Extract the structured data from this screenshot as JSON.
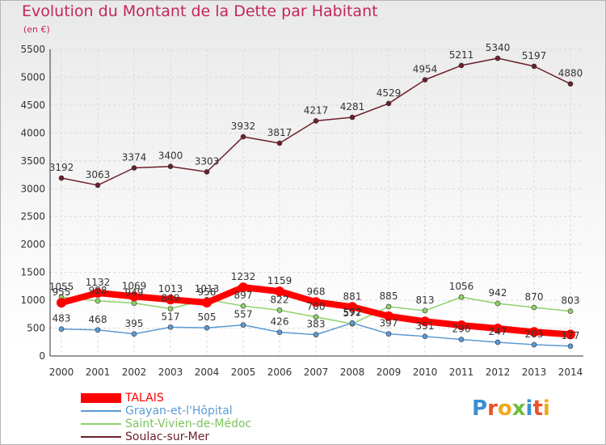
{
  "header": {
    "title": "Evolution du Montant de la Dette par Habitant",
    "subtitle": "(en €)"
  },
  "logo": {
    "letters": [
      "P",
      "r",
      "o",
      "x",
      "i",
      "t",
      "i"
    ]
  },
  "colors": {
    "title": "#c4265a",
    "talais": "#ff0000",
    "grayan": "#5b9bd5",
    "saint_vivien": "#8fd16a",
    "soulac": "#6b1f2a",
    "grid": "#d9d9d9"
  },
  "chart_data": {
    "type": "line",
    "title": "Evolution du Montant de la Dette par Habitant",
    "ylabel": "(en €)",
    "xlabel": "",
    "ylim": [
      0,
      5500
    ],
    "yticks": [
      0,
      500,
      1000,
      1500,
      2000,
      2500,
      3000,
      3500,
      4000,
      4500,
      5000,
      5500
    ],
    "x": [
      "2000",
      "2001",
      "2002",
      "2003",
      "2004",
      "2005",
      "2006",
      "2007",
      "2008",
      "2009",
      "2010",
      "2011",
      "2012",
      "2013",
      "2014"
    ],
    "grid": true,
    "legend": "bottom-left",
    "series": [
      {
        "name": "TALAIS",
        "color": "#ff0000",
        "values": [
          955,
          1132,
          1069,
          1013,
          958,
          1232,
          1159,
          968,
          881,
          714,
          620,
          552,
          493,
          431,
          387
        ],
        "labels": [
          "955",
          "1132",
          "1069",
          "1013",
          "958",
          "1232",
          "1159",
          "968",
          "881",
          "",
          "",
          "",
          "",
          "",
          ""
        ]
      },
      {
        "name": "Grayan-et-l'Hôpital",
        "color": "#5b9bd5",
        "values": [
          483,
          468,
          395,
          517,
          505,
          557,
          426,
          383,
          592,
          397,
          351,
          296,
          247,
          203,
          177
        ],
        "labels": [
          "483",
          "468",
          "395",
          "517",
          "505",
          "557",
          "426",
          "383",
          "592",
          "397",
          "351",
          "296",
          "247",
          "203",
          "177"
        ]
      },
      {
        "name": "Saint-Vivien-de-Médoc",
        "color": "#8fd16a",
        "values": [
          1055,
          988,
          949,
          849,
          1013,
          897,
          822,
          700,
          577,
          885,
          813,
          1056,
          942,
          870,
          803
        ],
        "labels": [
          "1055",
          "988",
          "949",
          "849",
          "1013",
          "897",
          "822",
          "700",
          "577",
          "885",
          "813",
          "1056",
          "942",
          "870",
          "803"
        ]
      },
      {
        "name": "Soulac-sur-Mer",
        "color": "#6b1f2a",
        "values": [
          3192,
          3063,
          3374,
          3400,
          3303,
          3932,
          3817,
          4217,
          4281,
          4529,
          4954,
          5211,
          5340,
          5197,
          4880
        ],
        "labels": [
          "3192",
          "3063",
          "3374",
          "3400",
          "3303",
          "3932",
          "3817",
          "4217",
          "4281",
          "4529",
          "4954",
          "5211",
          "5340",
          "5197",
          "4880"
        ]
      }
    ]
  }
}
